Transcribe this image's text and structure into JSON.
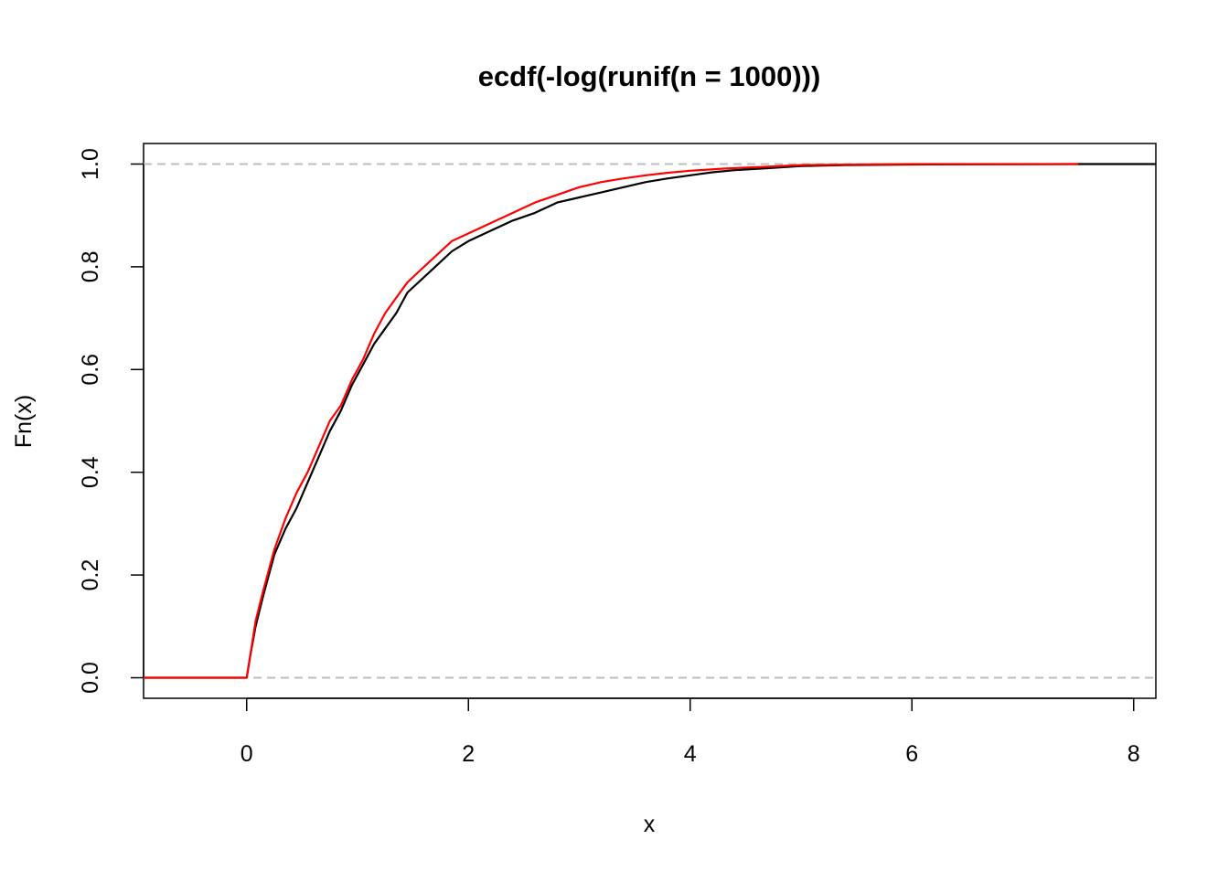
{
  "chart_data": {
    "type": "line",
    "title": "ecdf(-log(runif(n = 1000)))",
    "xlabel": "x",
    "ylabel": "Fn(x)",
    "xlim": [
      -0.93,
      8.2
    ],
    "ylim": [
      -0.04,
      1.04
    ],
    "x_ticks": [
      0,
      2,
      4,
      6,
      8
    ],
    "y_ticks": [
      0.0,
      0.2,
      0.4,
      0.6,
      0.8,
      1.0
    ],
    "x_tick_labels": [
      "0",
      "2",
      "4",
      "6",
      "8"
    ],
    "y_tick_labels": [
      "0.0",
      "0.2",
      "0.4",
      "0.6",
      "0.8",
      "1.0"
    ],
    "grid": false,
    "reference_lines": {
      "y": [
        0,
        1
      ],
      "style": "dashed",
      "color": "#bebebe"
    },
    "series": [
      {
        "color": "#000000",
        "points": [
          [
            -0.93,
            0.0
          ],
          [
            0.0,
            0.0
          ],
          [
            0.03,
            0.04
          ],
          [
            0.08,
            0.1
          ],
          [
            0.15,
            0.16
          ],
          [
            0.25,
            0.24
          ],
          [
            0.35,
            0.29
          ],
          [
            0.45,
            0.33
          ],
          [
            0.55,
            0.38
          ],
          [
            0.65,
            0.43
          ],
          [
            0.75,
            0.48
          ],
          [
            0.85,
            0.52
          ],
          [
            0.95,
            0.57
          ],
          [
            1.05,
            0.61
          ],
          [
            1.15,
            0.65
          ],
          [
            1.25,
            0.68
          ],
          [
            1.35,
            0.71
          ],
          [
            1.45,
            0.75
          ],
          [
            1.55,
            0.77
          ],
          [
            1.7,
            0.8
          ],
          [
            1.85,
            0.83
          ],
          [
            2.0,
            0.85
          ],
          [
            2.2,
            0.87
          ],
          [
            2.4,
            0.89
          ],
          [
            2.6,
            0.905
          ],
          [
            2.8,
            0.925
          ],
          [
            3.0,
            0.935
          ],
          [
            3.2,
            0.945
          ],
          [
            3.4,
            0.955
          ],
          [
            3.6,
            0.965
          ],
          [
            3.8,
            0.972
          ],
          [
            4.0,
            0.978
          ],
          [
            4.2,
            0.984
          ],
          [
            4.4,
            0.988
          ],
          [
            4.7,
            0.992
          ],
          [
            5.0,
            0.996
          ],
          [
            5.4,
            0.998
          ],
          [
            6.0,
            0.999
          ],
          [
            7.5,
            1.0
          ],
          [
            8.2,
            1.0
          ]
        ]
      },
      {
        "color": "#ff0000",
        "points": [
          [
            -0.93,
            0.0
          ],
          [
            0.0,
            0.0
          ],
          [
            0.03,
            0.04
          ],
          [
            0.08,
            0.11
          ],
          [
            0.15,
            0.17
          ],
          [
            0.25,
            0.25
          ],
          [
            0.35,
            0.31
          ],
          [
            0.45,
            0.36
          ],
          [
            0.55,
            0.4
          ],
          [
            0.65,
            0.45
          ],
          [
            0.75,
            0.5
          ],
          [
            0.85,
            0.53
          ],
          [
            0.95,
            0.58
          ],
          [
            1.05,
            0.62
          ],
          [
            1.15,
            0.67
          ],
          [
            1.25,
            0.71
          ],
          [
            1.35,
            0.74
          ],
          [
            1.45,
            0.77
          ],
          [
            1.55,
            0.79
          ],
          [
            1.7,
            0.82
          ],
          [
            1.85,
            0.85
          ],
          [
            2.0,
            0.865
          ],
          [
            2.2,
            0.885
          ],
          [
            2.4,
            0.905
          ],
          [
            2.6,
            0.925
          ],
          [
            2.8,
            0.94
          ],
          [
            3.0,
            0.955
          ],
          [
            3.2,
            0.965
          ],
          [
            3.4,
            0.972
          ],
          [
            3.6,
            0.978
          ],
          [
            3.8,
            0.983
          ],
          [
            4.0,
            0.987
          ],
          [
            4.3,
            0.991
          ],
          [
            4.7,
            0.995
          ],
          [
            5.0,
            0.998
          ],
          [
            5.5,
            0.999
          ],
          [
            6.0,
            1.0
          ],
          [
            7.5,
            1.0
          ]
        ]
      }
    ]
  }
}
